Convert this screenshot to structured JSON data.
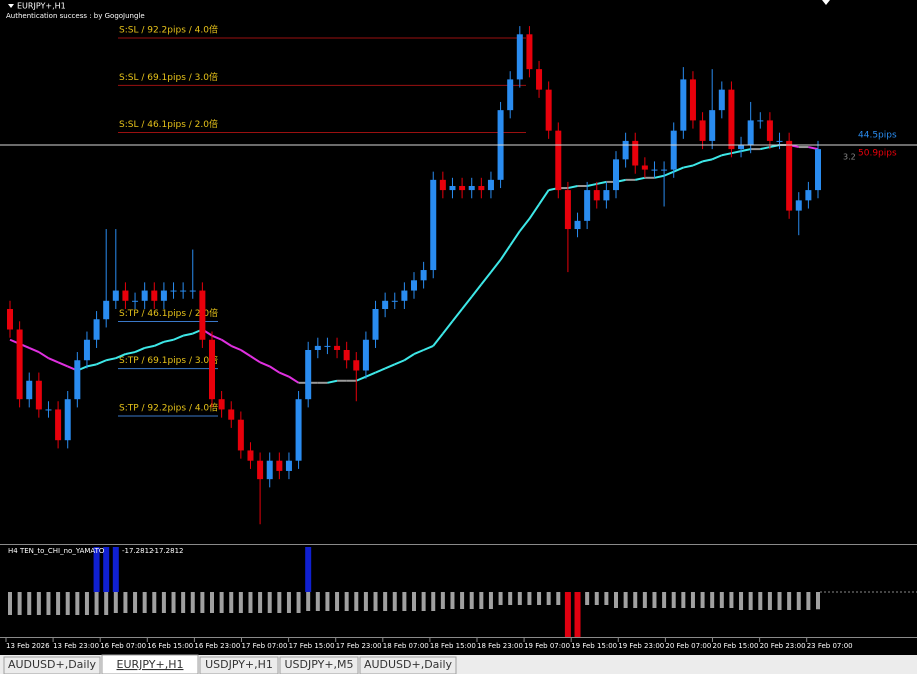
{
  "window": {
    "symbol": "EURJPY+,H1",
    "status": "Authentication success : by GogoJungle"
  },
  "chart_data": {
    "type": "candlestick",
    "open": [
      -40,
      -50,
      -84,
      -75,
      -89,
      -89,
      -104,
      -84,
      -65,
      -55,
      -45,
      -36,
      -31,
      -36,
      -36,
      -31,
      -36,
      -31,
      -31,
      -31,
      -31,
      -55,
      -84,
      -89,
      -94,
      -109,
      -114,
      -123,
      -114,
      -119,
      -114,
      -84,
      -60,
      -58,
      -58,
      -60,
      -65,
      -70,
      -55,
      -40,
      -36,
      -36,
      -31,
      -26,
      -21,
      23,
      18,
      20,
      18,
      20,
      18,
      23,
      57,
      72,
      94,
      77,
      67,
      47,
      18,
      -1,
      3,
      18,
      13,
      18,
      33,
      42,
      30,
      28,
      28,
      28,
      47,
      72,
      52,
      42,
      57,
      67,
      38,
      40,
      52,
      52,
      42,
      42,
      8,
      13,
      18
    ],
    "high": [
      -36,
      -46,
      -71,
      -71,
      -85,
      -85,
      -80,
      -61,
      -51,
      -41,
      -1,
      -1,
      -27,
      -32,
      -27,
      -27,
      -27,
      -27,
      -27,
      -11,
      -27,
      -51,
      -80,
      -85,
      -90,
      -105,
      -110,
      -110,
      -110,
      -110,
      -80,
      -56,
      -54,
      -54,
      -54,
      -56,
      -61,
      -51,
      -36,
      -32,
      -32,
      -27,
      -22,
      -17,
      27,
      27,
      24,
      24,
      24,
      24,
      27,
      61,
      76,
      98,
      98,
      81,
      71,
      51,
      22,
      7,
      22,
      22,
      22,
      37,
      46,
      46,
      34,
      32,
      32,
      51,
      78,
      76,
      56,
      77,
      71,
      71,
      44,
      61,
      56,
      56,
      46,
      46,
      17,
      22,
      42
    ],
    "low": [
      -54,
      -88,
      -88,
      -93,
      -93,
      -108,
      -108,
      -88,
      -69,
      -59,
      -49,
      -40,
      -40,
      -40,
      -40,
      -40,
      -40,
      -35,
      -35,
      -35,
      -59,
      -88,
      -93,
      -98,
      -113,
      -118,
      -145,
      -127,
      -123,
      -123,
      -118,
      -88,
      -64,
      -62,
      -64,
      -69,
      -85,
      -74,
      -59,
      -44,
      -40,
      -40,
      -35,
      -30,
      -25,
      14,
      14,
      14,
      14,
      14,
      14,
      19,
      53,
      68,
      73,
      63,
      43,
      14,
      -22,
      -5,
      -1,
      9,
      9,
      14,
      29,
      26,
      24,
      24,
      10,
      24,
      43,
      48,
      38,
      38,
      53,
      34,
      34,
      36,
      48,
      38,
      38,
      4,
      -4,
      9,
      14
    ],
    "close": [
      -50,
      -84,
      -75,
      -89,
      -89,
      -104,
      -84,
      -65,
      -55,
      -45,
      -36,
      -31,
      -36,
      -36,
      -31,
      -36,
      -31,
      -31,
      -31,
      -31,
      -55,
      -84,
      -89,
      -94,
      -109,
      -114,
      -123,
      -114,
      -119,
      -114,
      -84,
      -60,
      -58,
      -58,
      -60,
      -65,
      -70,
      -55,
      -40,
      -36,
      -36,
      -31,
      -26,
      -21,
      23,
      18,
      20,
      18,
      20,
      18,
      23,
      57,
      72,
      94,
      77,
      67,
      47,
      18,
      -1,
      3,
      18,
      13,
      18,
      33,
      42,
      30,
      28,
      28,
      28,
      47,
      72,
      52,
      42,
      57,
      67,
      38,
      40,
      52,
      52,
      42,
      42,
      8,
      13,
      18,
      38
    ],
    "up_color": "#2a8cf0",
    "down_color": "#e8000b",
    "ma": [
      -55,
      -57,
      -59,
      -61,
      -64,
      -66,
      -68,
      -70,
      -68,
      -67,
      -65,
      -64,
      -62,
      -61,
      -59,
      -58,
      -56,
      -55,
      -53,
      -52,
      -50,
      -53,
      -55,
      -58,
      -60,
      -63,
      -66,
      -68,
      -71,
      -73,
      -76,
      -76,
      -76,
      -76,
      -75,
      -75,
      -75,
      -73,
      -71,
      -69,
      -67,
      -65,
      -62,
      -60,
      -58,
      -52,
      -46,
      -40,
      -34,
      -28,
      -22,
      -16,
      -9,
      -2,
      4,
      11,
      18,
      19,
      19,
      20,
      20,
      21,
      22,
      22,
      23,
      23,
      24,
      24,
      25,
      27,
      29,
      30,
      32,
      33,
      35,
      36,
      37,
      38,
      38,
      39,
      40,
      40,
      39,
      39,
      38
    ],
    "ma_colors": {
      "up": "#3ee8e8",
      "down": "#e030e0",
      "flat": "#9a9a9a"
    },
    "levels": [
      {
        "label": "S:SL / 92.2pips / 4.0倍",
        "pips": 92.2,
        "side": "up",
        "color": "#9a1010"
      },
      {
        "label": "S:SL / 69.1pips / 3.0倍",
        "pips": 69.1,
        "side": "up",
        "color": "#9a1010"
      },
      {
        "label": "S:SL / 46.1pips / 2.0倍",
        "pips": 46.1,
        "side": "up",
        "color": "#9a1010"
      },
      {
        "label": "S:TP / 46.1pips / 2.0倍",
        "pips": 46.1,
        "side": "down",
        "color": "#3a78c8"
      },
      {
        "label": "S:TP / 69.1pips / 3.0倍",
        "pips": 69.1,
        "side": "down",
        "color": "#3a78c8"
      },
      {
        "label": "S:TP / 92.2pips / 4.0倍",
        "pips": 92.2,
        "side": "down",
        "color": "#3a78c8"
      }
    ],
    "level_text_color": "#e6c21a",
    "current_price": 40,
    "right_labels": [
      {
        "text": "44.5pips",
        "color": "#2a8cf0"
      },
      {
        "text": "50.9pips",
        "color": "#e8000b"
      },
      {
        "text": "3.2",
        "color": "#8a8a8a"
      }
    ],
    "time_labels": [
      "13 Feb 2026",
      "13 Feb 23:00",
      "16 Feb 07:00",
      "16 Feb 15:00",
      "16 Feb 23:00",
      "17 Feb 07:00",
      "17 Feb 15:00",
      "17 Feb 23:00",
      "18 Feb 07:00",
      "18 Feb 15:00",
      "18 Feb 23:00",
      "19 Feb 07:00",
      "19 Feb 15:00",
      "19 Feb 23:00",
      "20 Feb 07:00",
      "20 Feb 15:00",
      "20 Feb 23:00",
      "23 Feb 07:00"
    ]
  },
  "indicator": {
    "type": "bar",
    "name": "H4  TEN_to_CHI_no_YAMATO",
    "readouts": [
      "-17.2812",
      "-17.2812"
    ],
    "values": [
      -23,
      -23,
      -23,
      -23,
      -23,
      -23,
      -23,
      -23,
      -23,
      -23,
      -23,
      -21,
      -21,
      -21,
      -21,
      -21,
      -21,
      -21,
      -21,
      -21,
      -21,
      -21,
      -21,
      -21,
      -21,
      -21,
      -21,
      -21,
      -21,
      -21,
      -21,
      -19,
      -19,
      -19,
      -19,
      -19,
      -19,
      -19,
      -19,
      -19,
      -19,
      -19,
      -19,
      -19,
      -19,
      -17,
      -17,
      -17,
      -17,
      -17,
      -17,
      -13,
      -13,
      -13,
      -13,
      -13,
      -13,
      -13,
      -13,
      -13,
      -13,
      -13,
      -13,
      -16,
      -16,
      -16,
      -16,
      -16,
      -16,
      -16,
      -16,
      -16,
      -16,
      -16,
      -16,
      -16,
      -18,
      -18,
      -18,
      -18,
      -18,
      -18,
      -18,
      -18,
      -17.2812
    ],
    "color": "#a0a0a0",
    "ylim": [
      -45,
      45
    ],
    "signals": [
      {
        "at": 9,
        "value": 45,
        "color": "#1020d0"
      },
      {
        "at": 10,
        "value": 45,
        "color": "#1020d0"
      },
      {
        "at": 11,
        "value": 45,
        "color": "#1020d0"
      },
      {
        "at": 31,
        "value": 45,
        "color": "#1020d0"
      },
      {
        "at": 58,
        "value": -45,
        "color": "#e00010"
      },
      {
        "at": 59,
        "value": -45,
        "color": "#e00010"
      }
    ]
  },
  "tabs": [
    "AUDUSD+,Daily",
    "EURJPY+,H1",
    "USDJPY+,H1",
    "USDJPY+,M5",
    "AUDUSD+,Daily"
  ],
  "active_tab": 1
}
